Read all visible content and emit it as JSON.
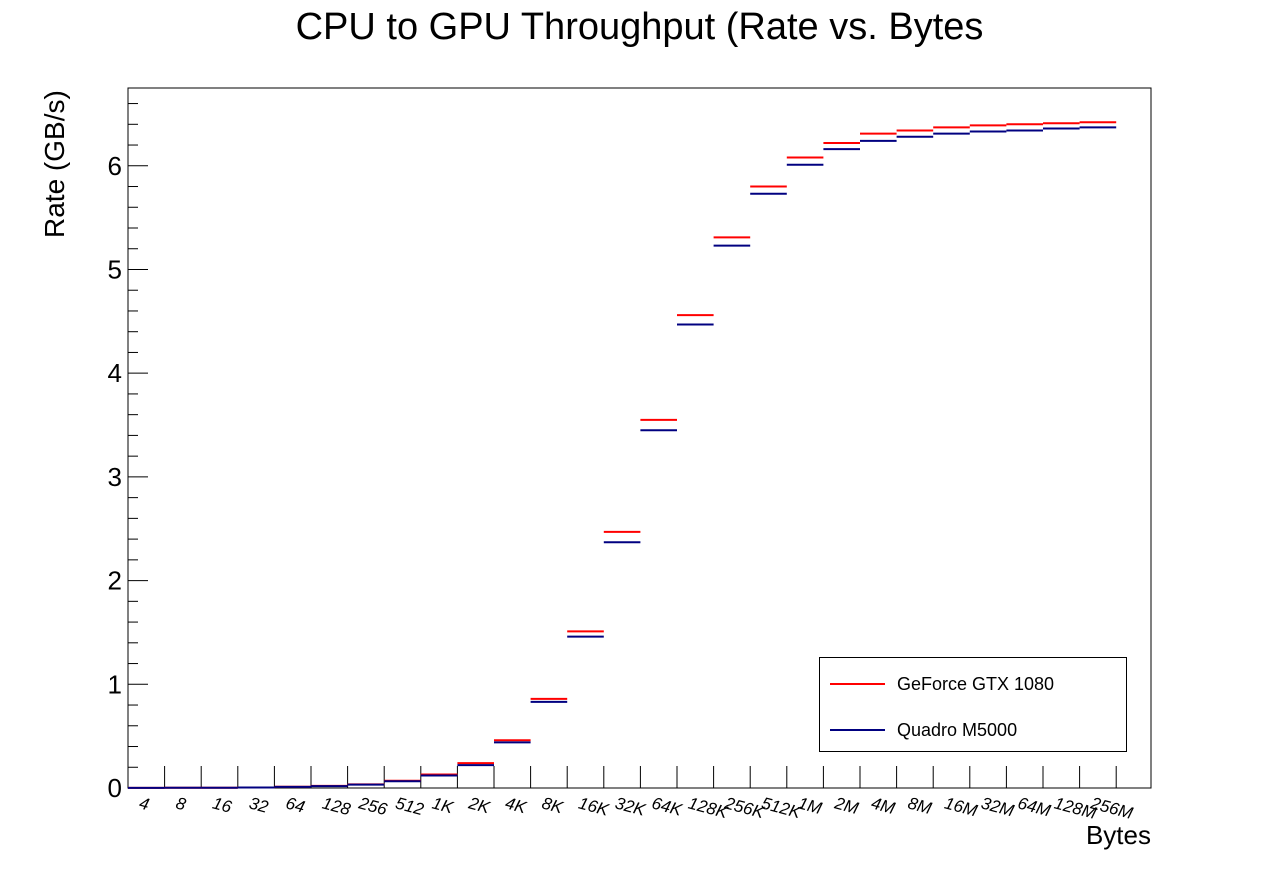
{
  "chart_data": {
    "type": "line",
    "title": "CPU to GPU Throughput (Rate vs. Bytes",
    "xlabel": "Bytes",
    "ylabel": "Rate (GB/s)",
    "ylim": [
      0,
      6.75
    ],
    "y_ticks": [
      "0",
      "1",
      "2",
      "3",
      "4",
      "5",
      "6"
    ],
    "categories": [
      "4",
      "8",
      "16",
      "32",
      "64",
      "128",
      "256",
      "512",
      "1K",
      "2K",
      "4K",
      "8K",
      "16K",
      "32K",
      "64K",
      "128K",
      "256K",
      "512K",
      "1M",
      "2M",
      "4M",
      "8M",
      "16M",
      "32M",
      "64M",
      "128M",
      "256M"
    ],
    "series": [
      {
        "name": "GeForce GTX 1080",
        "color": "#ff0000",
        "values": [
          0.001,
          0.002,
          0.003,
          0.005,
          0.012,
          0.02,
          0.035,
          0.07,
          0.13,
          0.24,
          0.46,
          0.86,
          1.51,
          2.47,
          3.55,
          4.56,
          5.31,
          5.8,
          6.08,
          6.22,
          6.31,
          6.34,
          6.37,
          6.39,
          6.4,
          6.41,
          6.42
        ]
      },
      {
        "name": "Quadro M5000",
        "color": "#000080",
        "values": [
          0.001,
          0.002,
          0.003,
          0.005,
          0.011,
          0.018,
          0.032,
          0.065,
          0.12,
          0.22,
          0.44,
          0.83,
          1.46,
          2.37,
          3.45,
          4.47,
          5.23,
          5.73,
          6.01,
          6.16,
          6.24,
          6.28,
          6.31,
          6.33,
          6.34,
          6.36,
          6.37
        ]
      }
    ],
    "grid": false,
    "legend_position": "bottom-right"
  }
}
